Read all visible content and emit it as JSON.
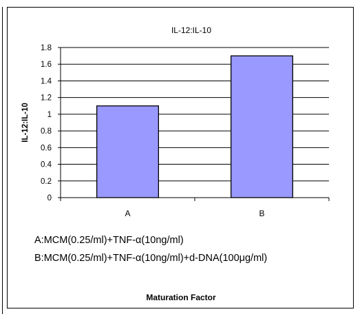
{
  "chart_data": {
    "type": "bar",
    "title": "IL-12:IL-10",
    "ylabel": "IL-12:IL-10",
    "xlabel": "Maturation Factor",
    "categories": [
      "A",
      "B"
    ],
    "values": [
      1.1,
      1.7
    ],
    "ylim": [
      0,
      1.8
    ],
    "yticks": [
      "0",
      "0.2",
      "0.4",
      "0.6",
      "0.8",
      "1",
      "1.2",
      "1.4",
      "1.6",
      "1.8"
    ],
    "grid": true,
    "bar_color": "#9999ff",
    "bar_edge_color": "#000000",
    "legend_notes": [
      "A:MCM(0.25/ml)+TNF-α(10ng/ml)",
      "B:MCM(0.25/ml)+TNF-α(10ng/ml)+d-DNA(100μg/ml)"
    ]
  }
}
